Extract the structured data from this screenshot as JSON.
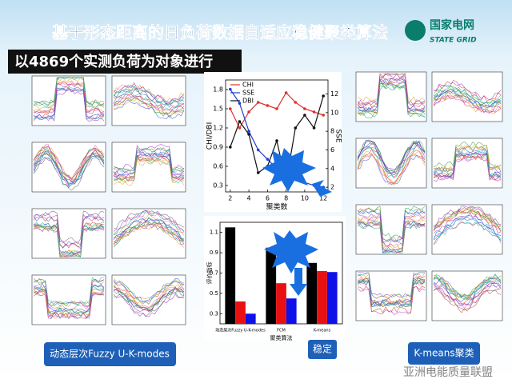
{
  "header": {
    "title": "基于形态距离的日负荷数据自适应稳健聚类算法",
    "logo_cn": "国家电网",
    "logo_en": "STATE GRID",
    "subtitle": "以4869个实测负荷为对象进行"
  },
  "captions": {
    "left": "动态层次Fuzzy U-K-modes",
    "middle": "稳定",
    "right": "K-means聚类"
  },
  "watermark": "亚洲电能质量联盟",
  "chart_data": [
    {
      "type": "line",
      "x_label": "聚类数",
      "y_label": "CHI/DBI",
      "y2_label": "SSE",
      "x": [
        2,
        3,
        4,
        5,
        6,
        7,
        8,
        9,
        10,
        11,
        12
      ],
      "xlim": [
        1.5,
        12.5
      ],
      "xticks": [
        2,
        4,
        6,
        8,
        10,
        12
      ],
      "ylim": [
        0.2,
        1.95
      ],
      "yticks": [
        0.3,
        0.6,
        0.9,
        1.2,
        1.5,
        1.8
      ],
      "y2lim": [
        1.5,
        13.5
      ],
      "y2ticks": [
        2,
        4,
        6,
        8,
        10,
        12
      ],
      "series": [
        {
          "name": "CHI",
          "color": "#e0302a",
          "values": [
            1.5,
            1.2,
            1.45,
            1.6,
            1.55,
            1.5,
            1.75,
            1.6,
            1.5,
            1.45,
            1.4
          ]
        },
        {
          "name": "SSE",
          "color": "#1f3fd0",
          "axis": "y2",
          "values": [
            12.5,
            11,
            8,
            6,
            5,
            4,
            3.5,
            3,
            2.5,
            2.2,
            2
          ]
        },
        {
          "name": "DBI",
          "color": "#111111",
          "values": [
            0.9,
            1.3,
            1.1,
            0.5,
            0.6,
            1.0,
            0.35,
            1.2,
            1.4,
            1.2,
            1.7
          ]
        }
      ]
    },
    {
      "type": "bar",
      "x_label": "聚类算法",
      "y_label": "评价指标",
      "categories": [
        "动态层次Fuzzy U-K-modes",
        "FCM",
        "K-means"
      ],
      "ylim": [
        0.2,
        1.2
      ],
      "yticks": [
        0.3,
        0.5,
        0.7,
        0.9,
        1.1
      ],
      "series": [
        {
          "color": "#000000",
          "values": [
            1.15,
            0.95,
            0.8
          ]
        },
        {
          "color": "#e81010",
          "values": [
            0.42,
            0.6,
            0.72
          ]
        },
        {
          "color": "#1010e8",
          "values": [
            0.3,
            0.45,
            0.71
          ]
        }
      ]
    }
  ]
}
